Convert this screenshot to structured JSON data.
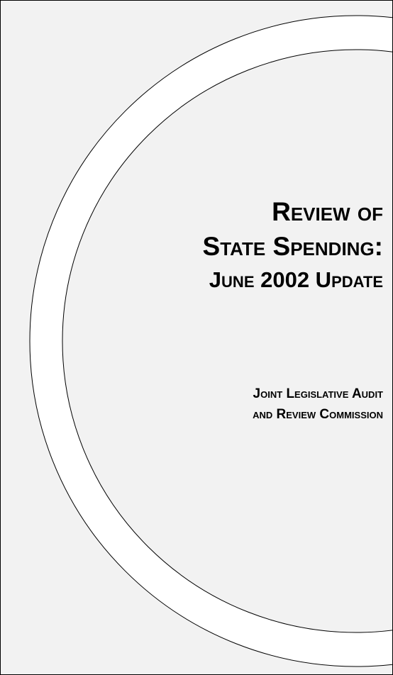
{
  "title": {
    "lines": [
      "Review of",
      "State Spending:",
      "June 2002 Update"
    ]
  },
  "author": {
    "lines": [
      "Joint Legislative Audit",
      "and Review Commission"
    ]
  }
}
